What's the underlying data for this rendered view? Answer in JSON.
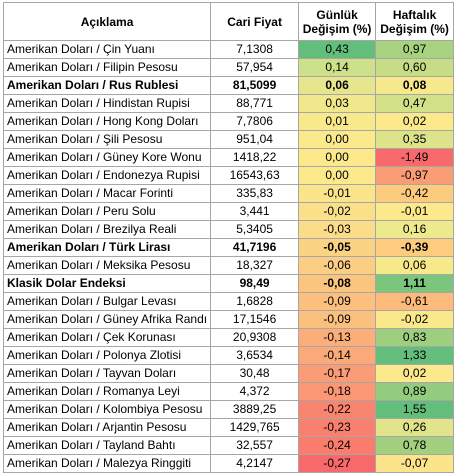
{
  "headers": {
    "aciklama": "Açıklama",
    "cari_fiyat": "Cari Fiyat",
    "gunluk": "Günlük Değişim (%)",
    "haftalik": "Haftalık Değişim (%)"
  },
  "rows": [
    {
      "aciklama": "Amerikan Doları / Çin Yuanı",
      "cari": "7,1308",
      "gunluk": "0,43",
      "haftalik": "0,97",
      "g_color": "#63be7b",
      "h_color": "#a7d27f",
      "bold": false
    },
    {
      "aciklama": "Amerikan Doları / Filipin Pesosu",
      "cari": "57,954",
      "gunluk": "0,14",
      "haftalik": "0,60",
      "g_color": "#cde08a",
      "h_color": "#c6dd86",
      "bold": false
    },
    {
      "aciklama": "Amerikan Doları / Rus Rublesi",
      "cari": "81,5099",
      "gunluk": "0,06",
      "haftalik": "0,08",
      "g_color": "#e6e68f",
      "h_color": "#f6e98c",
      "bold": true
    },
    {
      "aciklama": "Amerikan Doları / Hindistan Rupisi",
      "cari": "88,771",
      "gunluk": "0,03",
      "haftalik": "0,47",
      "g_color": "#f1e88e",
      "h_color": "#d2e188",
      "bold": false
    },
    {
      "aciklama": "Amerikan Doları / Hong Kong Doları",
      "cari": "7,7806",
      "gunluk": "0,01",
      "haftalik": "0,02",
      "g_color": "#f8e98d",
      "h_color": "#fbe98b",
      "bold": false
    },
    {
      "aciklama": "Amerikan Doları / Şili Pesosu",
      "cari": "951,04",
      "gunluk": "0,00",
      "haftalik": "0,35",
      "g_color": "#fbe98b",
      "h_color": "#dce389",
      "bold": false
    },
    {
      "aciklama": "Amerikan Doları / Güney Kore Wonu",
      "cari": "1418,22",
      "gunluk": "0,00",
      "haftalik": "-1,49",
      "g_color": "#fbe98b",
      "h_color": "#f8696b",
      "bold": false
    },
    {
      "aciklama": "Amerikan Doları / Endonezya Rupisi",
      "cari": "16543,63",
      "gunluk": "0,00",
      "haftalik": "-0,97",
      "g_color": "#fbe98b",
      "h_color": "#fa9d75",
      "bold": false
    },
    {
      "aciklama": "Amerikan Doları / Macar Forinti",
      "cari": "335,83",
      "gunluk": "-0,01",
      "haftalik": "-0,42",
      "g_color": "#fbe58a",
      "h_color": "#fdcb7e",
      "bold": false
    },
    {
      "aciklama": "Amerikan Doları / Peru Solu",
      "cari": "3,441",
      "gunluk": "-0,02",
      "haftalik": "-0,01",
      "g_color": "#fbe08a",
      "h_color": "#fbe98b",
      "bold": false
    },
    {
      "aciklama": "Amerikan Doları / Brezilya Reali",
      "cari": "5,3405",
      "gunluk": "-0,03",
      "haftalik": "0,16",
      "g_color": "#fbdc88",
      "h_color": "#edea8d",
      "bold": false
    },
    {
      "aciklama": "Amerikan Doları / Türk Lirası",
      "cari": "41,7196",
      "gunluk": "-0,05",
      "haftalik": "-0,39",
      "g_color": "#fbd385",
      "h_color": "#fdcc7f",
      "bold": true
    },
    {
      "aciklama": "Amerikan Doları / Meksika Pesosu",
      "cari": "18,327",
      "gunluk": "-0,06",
      "haftalik": "0,06",
      "g_color": "#fbce83",
      "h_color": "#f6e98c",
      "bold": false
    },
    {
      "aciklama": "Klasik Dolar Endeksi",
      "cari": "98,49",
      "gunluk": "-0,08",
      "haftalik": "1,11",
      "g_color": "#fbc47f",
      "h_color": "#7cc57d",
      "bold": true
    },
    {
      "aciklama": "Amerikan Doları / Bulgar Levası",
      "cari": "1,6828",
      "gunluk": "-0,09",
      "haftalik": "-0,61",
      "g_color": "#fbc07e",
      "h_color": "#fcba7b",
      "bold": false
    },
    {
      "aciklama": "Amerikan Doları / Güney Afrika Randı",
      "cari": "17,1546",
      "gunluk": "-0,09",
      "haftalik": "-0,02",
      "g_color": "#fbc07e",
      "h_color": "#fbe88b",
      "bold": false
    },
    {
      "aciklama": "Amerikan Doları / Çek Korunası",
      "cari": "20,9308",
      "gunluk": "-0,13",
      "haftalik": "0,83",
      "g_color": "#fbae79",
      "h_color": "#9dcf7f",
      "bold": false
    },
    {
      "aciklama": "Amerikan Doları / Polonya Zlotisi",
      "cari": "3,6534",
      "gunluk": "-0,14",
      "haftalik": "1,33",
      "g_color": "#fba978",
      "h_color": "#63be7b",
      "bold": false
    },
    {
      "aciklama": "Amerikan Doları /  Tayvan Doları",
      "cari": "30,48",
      "gunluk": "-0,17",
      "haftalik": "0,02",
      "g_color": "#fa9c75",
      "h_color": "#fbe98b",
      "bold": false
    },
    {
      "aciklama": "Amerikan Doları / Romanya Leyi",
      "cari": "4,372",
      "gunluk": "-0,18",
      "haftalik": "0,89",
      "g_color": "#fa9774",
      "h_color": "#94cc7f",
      "bold": false
    },
    {
      "aciklama": "Amerikan Doları / Kolombiya Pesosu",
      "cari": "3889,25",
      "gunluk": "-0,22",
      "haftalik": "1,55",
      "g_color": "#f9856f",
      "h_color": "#63be7b",
      "bold": false
    },
    {
      "aciklama": "Amerikan Doları / Arjantin Pesosu",
      "cari": "1429,765",
      "gunluk": "-0,23",
      "haftalik": "0,26",
      "g_color": "#f9806e",
      "h_color": "#e2e48b",
      "bold": false
    },
    {
      "aciklama": "Amerikan Doları / Tayland Bahtı",
      "cari": "32,557",
      "gunluk": "-0,24",
      "haftalik": "0,78",
      "g_color": "#f97c6d",
      "h_color": "#a3d07f",
      "bold": false
    },
    {
      "aciklama": "Amerikan Doları / Malezya Ringgiti",
      "cari": "4,2147",
      "gunluk": "-0,27",
      "haftalik": "-0,07",
      "g_color": "#f8696b",
      "h_color": "#fbe48a",
      "bold": false
    }
  ]
}
